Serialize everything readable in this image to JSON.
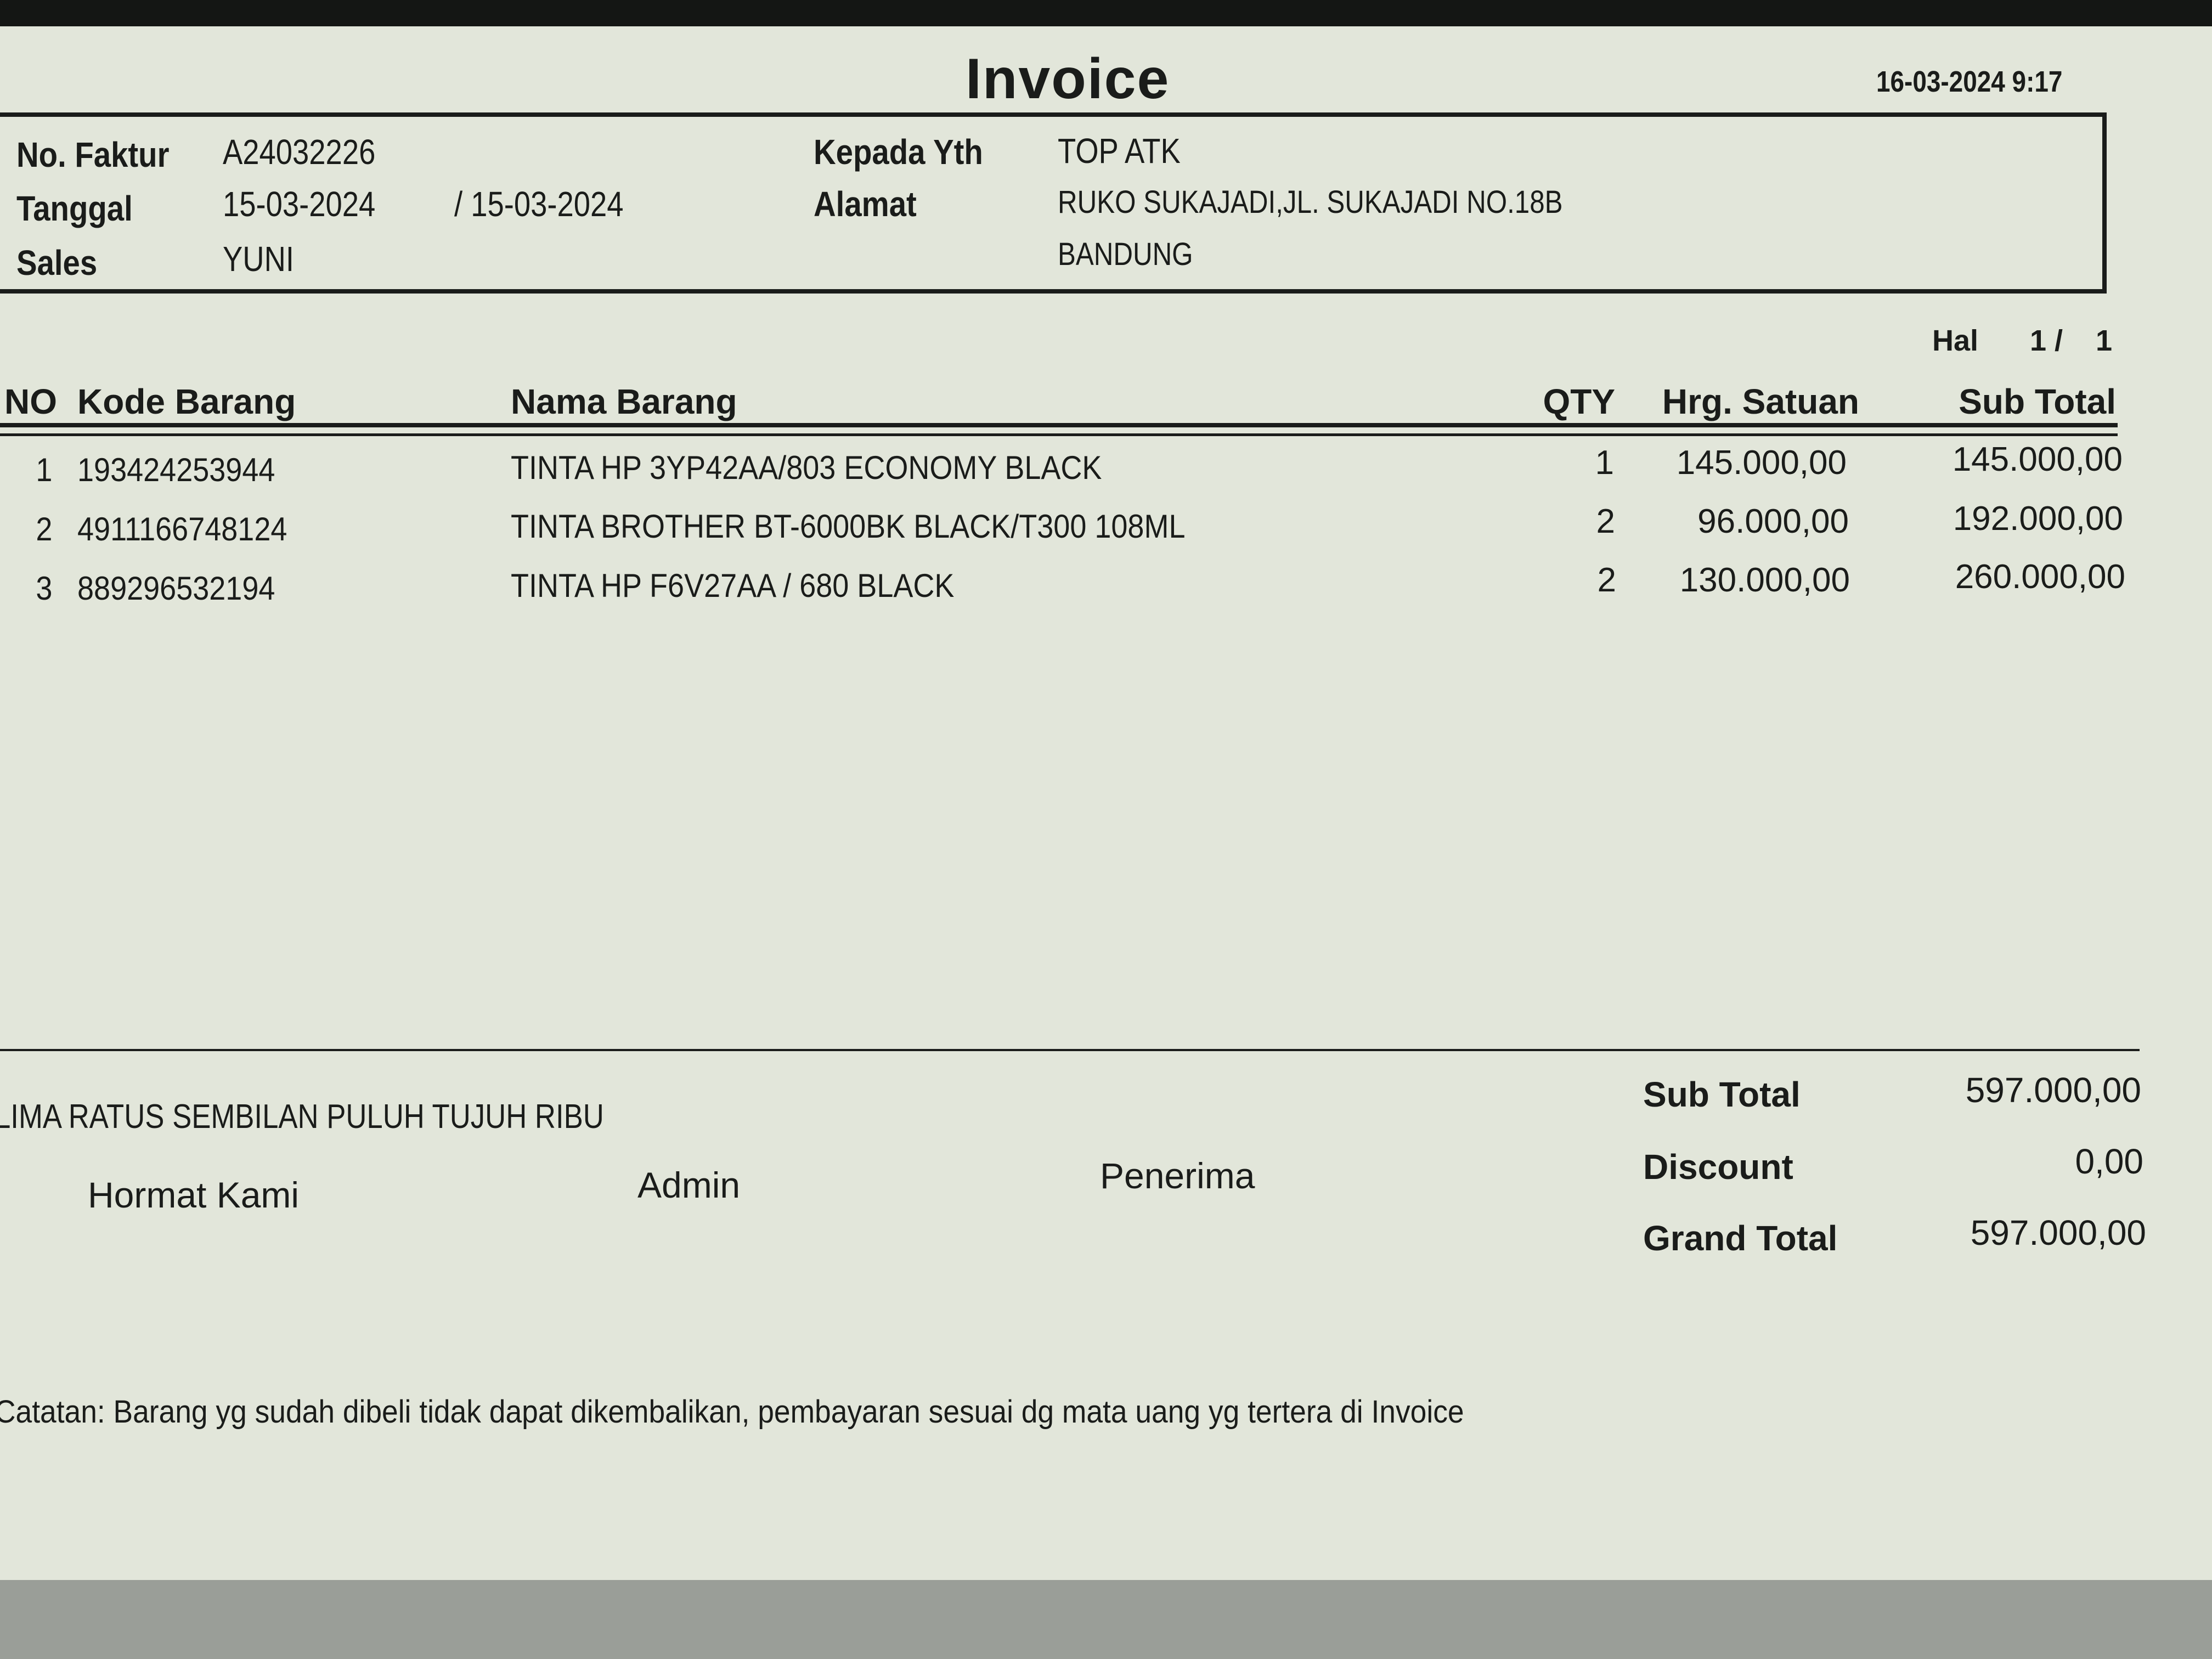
{
  "title": "Invoice",
  "printed_at": "16-03-2024 9:17",
  "header": {
    "no_faktur_label": "No. Faktur",
    "no_faktur": "A24032226",
    "tanggal_label": "Tanggal",
    "tanggal_from": "15-03-2024",
    "tanggal_to": "/ 15-03-2024",
    "sales_label": "Sales",
    "sales": "YUNI",
    "kepada_label": "Kepada Yth",
    "kepada": "TOP ATK",
    "alamat_label": "Alamat",
    "alamat_line1": "RUKO SUKAJADI,JL. SUKAJADI NO.18B",
    "alamat_line2": "BANDUNG"
  },
  "page": {
    "label": "Hal",
    "current": "1 /",
    "total": "1"
  },
  "table": {
    "columns": [
      "NO",
      "Kode Barang",
      "Nama Barang",
      "QTY",
      "Hrg. Satuan",
      "Sub Total"
    ],
    "rows": [
      {
        "no": "1",
        "kode": "193424253944",
        "nama": "TINTA HP 3YP42AA/803 ECONOMY BLACK",
        "qty": "1",
        "harga": "145.000,00",
        "subtotal": "145.000,00"
      },
      {
        "no": "2",
        "kode": "4911166748124",
        "nama": "TINTA BROTHER BT-6000BK BLACK/T300 108ML",
        "qty": "2",
        "harga": "96.000,00",
        "subtotal": "192.000,00"
      },
      {
        "no": "3",
        "kode": "889296532194",
        "nama": "TINTA HP F6V27AA / 680 BLACK",
        "qty": "2",
        "harga": "130.000,00",
        "subtotal": "260.000,00"
      }
    ]
  },
  "terbilang": "LIMA RATUS SEMBILAN PULUH TUJUH RIBU",
  "signatures": {
    "hormat": "Hormat Kami",
    "admin": "Admin",
    "penerima": "Penerima"
  },
  "totals": {
    "subtotal_label": "Sub Total",
    "subtotal": "597.000,00",
    "discount_label": "Discount",
    "discount": "0,00",
    "grand_label": "Grand Total",
    "grand": "597.000,00"
  },
  "note": "Catatan: Barang yg sudah dibeli tidak dapat dikembalikan, pembayaran sesuai dg mata uang yg tertera di Invoice"
}
